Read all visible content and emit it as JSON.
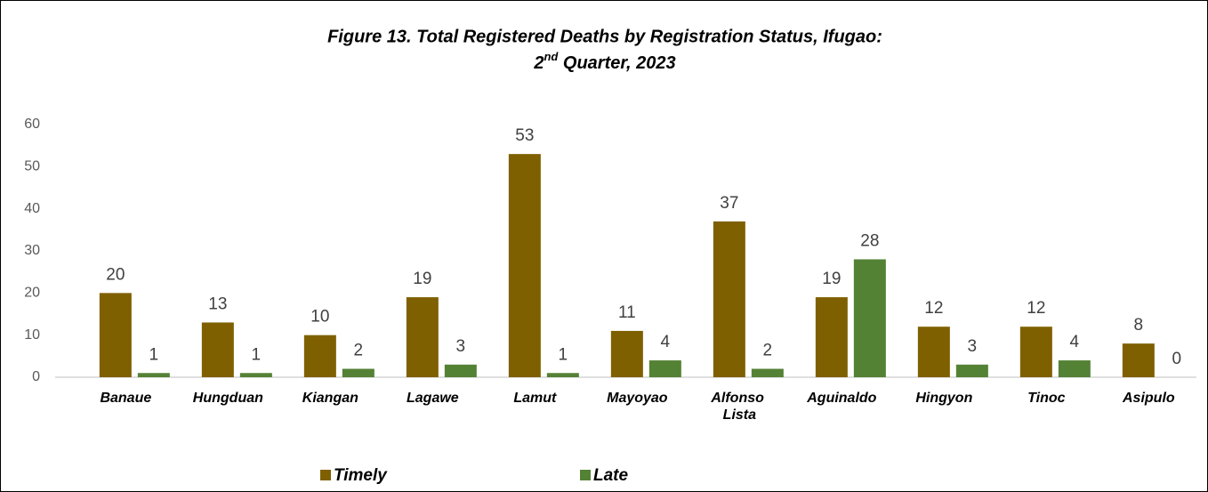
{
  "chart_data": {
    "type": "bar",
    "title": [
      "Figure 13. Total Registered Deaths by Registration Status, Ifugao:",
      "2nd Quarter, 2023"
    ],
    "categories": [
      "Banaue",
      "Hungduan",
      "Kiangan",
      "Lagawe",
      "Lamut",
      "Mayoyao",
      "Alfonso Lista",
      "Aguinaldo",
      "Hingyon",
      "Tinoc",
      "Asipulo"
    ],
    "series": [
      {
        "name": "Timely",
        "color": "#7f6000",
        "values": [
          20,
          13,
          10,
          19,
          53,
          11,
          37,
          19,
          12,
          12,
          8
        ]
      },
      {
        "name": "Late",
        "color": "#548235",
        "values": [
          1,
          1,
          2,
          3,
          1,
          4,
          2,
          28,
          3,
          4,
          0
        ]
      }
    ],
    "ylim": [
      0,
      60
    ],
    "yticks": [
      0,
      10,
      20,
      30,
      40,
      50,
      60
    ],
    "grid": false,
    "legend": "bottom"
  }
}
